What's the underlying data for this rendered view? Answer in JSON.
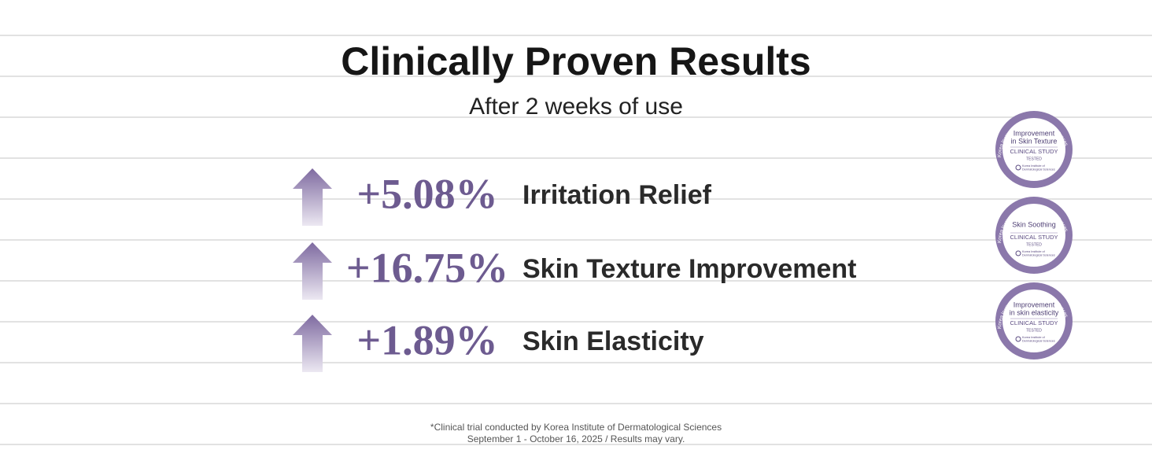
{
  "header": {
    "title": "Clinically Proven Results",
    "subtitle": "After 2 weeks of use"
  },
  "results": [
    {
      "value": "+5.08%",
      "label": "Irritation Relief"
    },
    {
      "value": "+16.75%",
      "label": "Skin Texture Improvement"
    },
    {
      "value": "+1.89%",
      "label": "Skin Elasticity"
    }
  ],
  "badges": [
    {
      "ring_text": "Korea Institute of Dermatological Sciences",
      "lines": [
        "Improvement",
        "in Skin Texture"
      ],
      "study": "CLINICAL STUDY",
      "tested": "TESTED",
      "logo_text": [
        "Korea Institute of",
        "Dermatological Sciences"
      ]
    },
    {
      "ring_text": "Korea Institute of Dermatological Sciences",
      "lines": [
        "Skin Soothing"
      ],
      "study": "CLINICAL STUDY",
      "tested": "TESTED",
      "logo_text": [
        "Korea Institute of",
        "Dermatological Sciences"
      ]
    },
    {
      "ring_text": "Korea Institute of Dermatological Sciences",
      "lines": [
        "Improvement",
        "in skin elasticity"
      ],
      "study": "CLINICAL STUDY",
      "tested": "TESTED",
      "logo_text": [
        "Korea Institute of",
        "Dermatological Sciences"
      ]
    }
  ],
  "footnote": [
    "*Clinical trial conducted by Korea Institute of Dermatological Sciences",
    "September 1 - October 16, 2025 / Results may vary."
  ]
}
